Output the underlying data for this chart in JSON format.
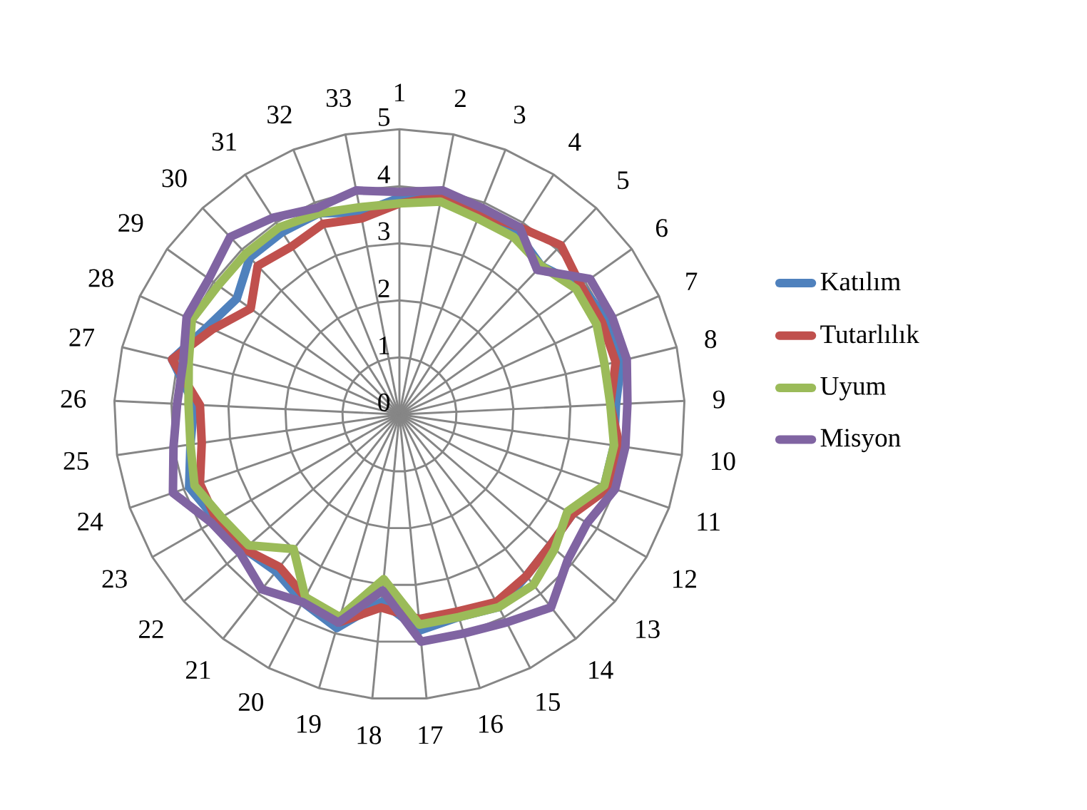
{
  "chart_data": {
    "type": "radar",
    "categories": [
      "1",
      "2",
      "3",
      "4",
      "5",
      "6",
      "7",
      "8",
      "9",
      "10",
      "11",
      "12",
      "13",
      "14",
      "15",
      "16",
      "17",
      "18",
      "19",
      "20",
      "21",
      "22",
      "23",
      "24",
      "25",
      "26",
      "27",
      "28",
      "29",
      "30",
      "31",
      "32",
      "33"
    ],
    "series": [
      {
        "name": "Katılım",
        "color": "#4f81bd",
        "values": [
          3.8,
          3.9,
          3.8,
          3.8,
          3.6,
          3.9,
          4.0,
          4.0,
          3.8,
          3.8,
          3.8,
          3.5,
          3.5,
          3.6,
          3.8,
          3.7,
          3.8,
          3.3,
          3.9,
          3.7,
          3.5,
          3.6,
          3.7,
          3.9,
          3.7,
          3.6,
          4.1,
          3.7,
          3.5,
          3.8,
          3.8,
          3.8,
          3.6
        ]
      },
      {
        "name": "Tutarlılık",
        "color": "#c0504d",
        "values": [
          3.7,
          3.9,
          3.8,
          3.9,
          4.1,
          3.9,
          3.9,
          3.9,
          3.7,
          3.9,
          3.9,
          3.5,
          3.5,
          3.6,
          3.7,
          3.6,
          3.6,
          3.4,
          3.8,
          3.6,
          3.4,
          3.6,
          3.7,
          3.7,
          3.5,
          3.5,
          4.1,
          3.6,
          3.2,
          3.6,
          3.5,
          3.6,
          3.5
        ]
      },
      {
        "name": "Uyum",
        "color": "#9bbb59",
        "values": [
          3.7,
          3.8,
          3.7,
          3.7,
          3.6,
          3.8,
          3.8,
          3.7,
          3.7,
          3.8,
          3.8,
          3.4,
          3.6,
          3.8,
          3.8,
          3.7,
          3.7,
          2.9,
          3.7,
          3.6,
          3.0,
          3.5,
          3.6,
          3.8,
          3.7,
          3.7,
          3.8,
          4.0,
          3.9,
          3.9,
          3.9,
          3.8,
          3.7
        ]
      },
      {
        "name": "Misyon",
        "color": "#8064a2",
        "values": [
          3.9,
          4.0,
          3.9,
          3.9,
          3.5,
          4.1,
          4.1,
          4.1,
          4.0,
          4.0,
          4.0,
          3.8,
          3.9,
          4.3,
          4.1,
          4.0,
          4.0,
          3.1,
          3.8,
          3.7,
          3.9,
          3.7,
          3.8,
          4.2,
          4.0,
          3.9,
          3.9,
          4.1,
          4.1,
          4.3,
          4.1,
          3.9,
          4.0
        ]
      }
    ],
    "ylim": [
      0,
      5
    ],
    "yticks": [
      0,
      1,
      2,
      3,
      4,
      5
    ],
    "grid": true,
    "legend": "right"
  }
}
